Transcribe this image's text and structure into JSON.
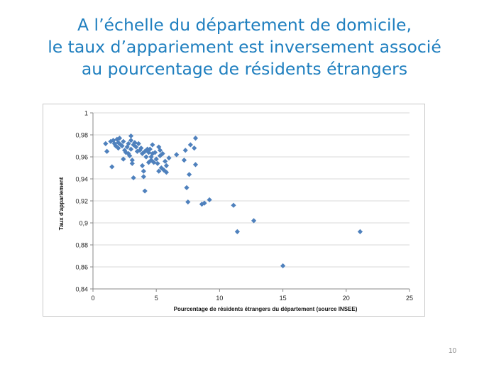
{
  "slide": {
    "title_lines": [
      "A l’échelle du département de domicile,",
      "le taux d’appariement est inversement associé",
      "au pourcentage de résidents étrangers"
    ],
    "page_number": "10"
  },
  "colors": {
    "title": "#1f7fbf",
    "marker": "#4f81bd",
    "gridline": "#d9d9d9",
    "axis": "#888888"
  },
  "chart_data": {
    "type": "scatter",
    "title": "",
    "xlabel": "Pourcentage de résidents étrangers du département (source INSEE)",
    "ylabel": "Taux d'appariement",
    "xlim": [
      0,
      25
    ],
    "ylim": [
      0.84,
      1
    ],
    "x_ticks": [
      0,
      5,
      10,
      15,
      20,
      25
    ],
    "y_ticks": [
      0.84,
      0.86,
      0.88,
      0.9,
      0.92,
      0.94,
      0.96,
      0.98,
      1
    ],
    "x_tick_labels": [
      "0",
      "5",
      "10",
      "15",
      "20",
      "25"
    ],
    "y_tick_labels": [
      "0,84",
      "0,86",
      "0,88",
      "0,9",
      "0,92",
      "0,94",
      "0,96",
      "0,98",
      "1"
    ],
    "grid": "horizontal",
    "legend": "none",
    "points": [
      [
        1.0,
        0.972
      ],
      [
        1.1,
        0.965
      ],
      [
        1.4,
        0.974
      ],
      [
        1.5,
        0.951
      ],
      [
        1.6,
        0.975
      ],
      [
        1.7,
        0.972
      ],
      [
        1.8,
        0.97
      ],
      [
        1.9,
        0.976
      ],
      [
        2.0,
        0.973
      ],
      [
        2.0,
        0.968
      ],
      [
        2.1,
        0.977
      ],
      [
        2.2,
        0.971
      ],
      [
        2.3,
        0.97
      ],
      [
        2.4,
        0.974
      ],
      [
        2.4,
        0.958
      ],
      [
        2.5,
        0.966
      ],
      [
        2.6,
        0.964
      ],
      [
        2.7,
        0.969
      ],
      [
        2.8,
        0.972
      ],
      [
        2.8,
        0.963
      ],
      [
        2.9,
        0.961
      ],
      [
        3.0,
        0.979
      ],
      [
        3.0,
        0.975
      ],
      [
        3.0,
        0.967
      ],
      [
        3.1,
        0.957
      ],
      [
        3.1,
        0.954
      ],
      [
        3.2,
        0.941
      ],
      [
        3.2,
        0.971
      ],
      [
        3.3,
        0.973
      ],
      [
        3.4,
        0.969
      ],
      [
        3.5,
        0.965
      ],
      [
        3.6,
        0.972
      ],
      [
        3.7,
        0.966
      ],
      [
        3.8,
        0.968
      ],
      [
        3.9,
        0.963
      ],
      [
        3.9,
        0.952
      ],
      [
        4.0,
        0.947
      ],
      [
        4.0,
        0.942
      ],
      [
        4.1,
        0.965
      ],
      [
        4.1,
        0.929
      ],
      [
        4.2,
        0.96
      ],
      [
        4.3,
        0.967
      ],
      [
        4.4,
        0.964
      ],
      [
        4.4,
        0.955
      ],
      [
        4.5,
        0.967
      ],
      [
        4.6,
        0.96
      ],
      [
        4.6,
        0.957
      ],
      [
        4.7,
        0.971
      ],
      [
        4.7,
        0.963
      ],
      [
        4.8,
        0.955
      ],
      [
        4.9,
        0.964
      ],
      [
        5.0,
        0.958
      ],
      [
        5.1,
        0.954
      ],
      [
        5.2,
        0.947
      ],
      [
        5.2,
        0.969
      ],
      [
        5.3,
        0.966
      ],
      [
        5.3,
        0.961
      ],
      [
        5.4,
        0.95
      ],
      [
        5.5,
        0.963
      ],
      [
        5.6,
        0.948
      ],
      [
        5.7,
        0.956
      ],
      [
        5.8,
        0.952
      ],
      [
        5.8,
        0.946
      ],
      [
        6.0,
        0.959
      ],
      [
        6.6,
        0.962
      ],
      [
        7.2,
        0.957
      ],
      [
        7.3,
        0.966
      ],
      [
        7.4,
        0.932
      ],
      [
        7.5,
        0.919
      ],
      [
        7.6,
        0.944
      ],
      [
        7.7,
        0.971
      ],
      [
        8.0,
        0.968
      ],
      [
        8.1,
        0.977
      ],
      [
        8.1,
        0.953
      ],
      [
        8.6,
        0.917
      ],
      [
        8.8,
        0.918
      ],
      [
        9.2,
        0.921
      ],
      [
        11.1,
        0.916
      ],
      [
        11.4,
        0.892
      ],
      [
        12.7,
        0.902
      ],
      [
        15.0,
        0.861
      ],
      [
        21.1,
        0.892
      ]
    ]
  }
}
